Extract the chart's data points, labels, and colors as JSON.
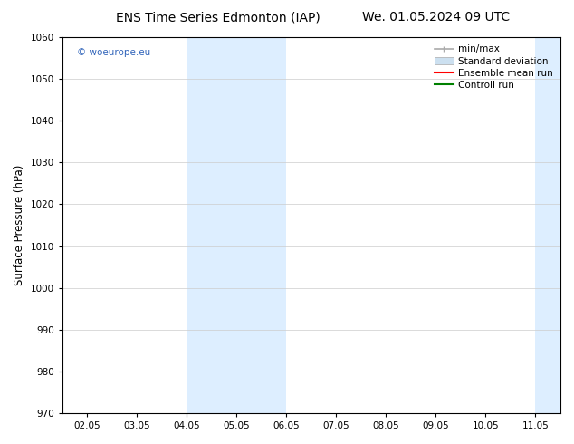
{
  "title_left": "ENS Time Series Edmonton (IAP)",
  "title_right": "We. 01.05.2024 09 UTC",
  "ylabel": "Surface Pressure (hPa)",
  "ylim": [
    970,
    1060
  ],
  "yticks": [
    970,
    980,
    990,
    1000,
    1010,
    1020,
    1030,
    1040,
    1050,
    1060
  ],
  "xtick_labels": [
    "02.05",
    "03.05",
    "04.05",
    "05.05",
    "06.05",
    "07.05",
    "08.05",
    "09.05",
    "10.05",
    "11.05"
  ],
  "shaded_color": "#ddeeff",
  "watermark_text": "© woeurope.eu",
  "watermark_color": "#3366bb",
  "legend_entries": [
    {
      "label": "min/max",
      "color": "#aaaaaa",
      "lw": 1.2,
      "style": "minmax"
    },
    {
      "label": "Standard deviation",
      "color": "#cce0f0",
      "lw": 6,
      "style": "band"
    },
    {
      "label": "Ensemble mean run",
      "color": "red",
      "lw": 1.5,
      "style": "line"
    },
    {
      "label": "Controll run",
      "color": "green",
      "lw": 1.5,
      "style": "line"
    }
  ],
  "background_color": "#ffffff",
  "title_fontsize": 10,
  "tick_fontsize": 7.5,
  "ylabel_fontsize": 8.5,
  "legend_fontsize": 7.5
}
